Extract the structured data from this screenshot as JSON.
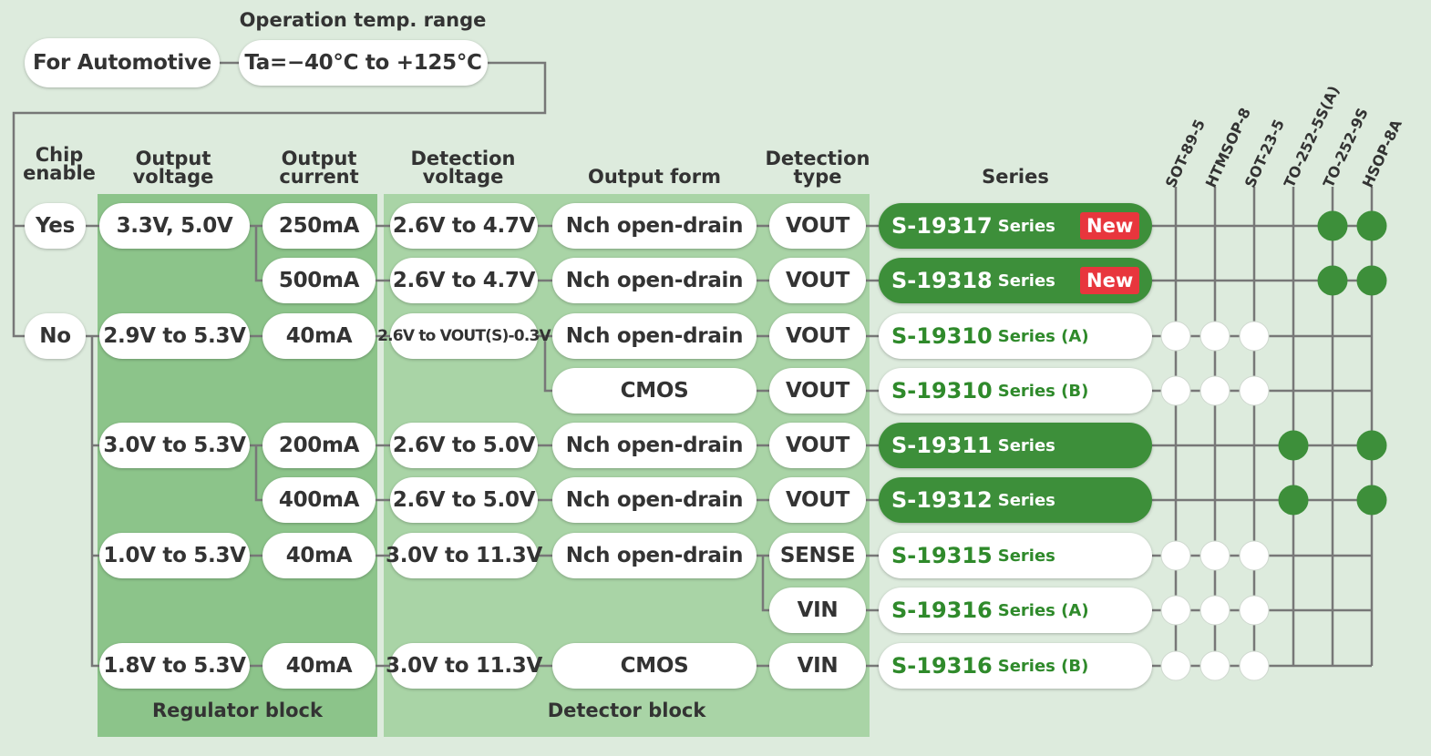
{
  "header": {
    "automotive_label": "For Automotive",
    "temp_caption": "Operation temp. range",
    "temp_value": "Ta=−40°C to +125°C"
  },
  "columns": {
    "chip_enable": "Chip enable",
    "output_voltage": "Output voltage",
    "output_current": "Output current",
    "detection_voltage": "Detection voltage",
    "output_form": "Output form",
    "detection_type": "Detection type",
    "series": "Series"
  },
  "blocks": {
    "regulator": "Regulator block",
    "detector": "Detector block"
  },
  "chip_enable": [
    "Yes",
    "No"
  ],
  "output_voltage": [
    "3.3V, 5.0V",
    "2.9V to 5.3V",
    "3.0V to 5.3V",
    "1.0V to 5.3V",
    "1.8V to 5.3V"
  ],
  "output_current": [
    "250mA",
    "500mA",
    "40mA",
    "200mA",
    "400mA",
    "40mA",
    "40mA"
  ],
  "detection_voltage": [
    "2.6V to 4.7V",
    "2.6V to 4.7V",
    "2.6V to VOUT(S)-0.3V",
    "2.6V to 5.0V",
    "2.6V to 5.0V",
    "3.0V to 11.3V",
    "3.0V to 11.3V"
  ],
  "output_form": [
    "Nch open-drain",
    "Nch open-drain",
    "Nch open-drain",
    "CMOS",
    "Nch open-drain",
    "Nch open-drain",
    "Nch open-drain",
    "CMOS"
  ],
  "detection_type": [
    "VOUT",
    "VOUT",
    "VOUT",
    "VOUT",
    "VOUT",
    "VOUT",
    "SENSE",
    "VIN",
    "VIN"
  ],
  "new_badge": "New",
  "packages": [
    "SOT-89-5",
    "HTMSOP-8",
    "SOT-23-5",
    "TO-252-5S(A)",
    "TO-252-9S",
    "HSOP-8A"
  ],
  "series": [
    {
      "name": "S-19317",
      "suffix": "Series",
      "style": "dark",
      "new": true,
      "packages": [
        false,
        false,
        false,
        false,
        true,
        true
      ]
    },
    {
      "name": "S-19318",
      "suffix": "Series",
      "style": "dark",
      "new": true,
      "packages": [
        false,
        false,
        false,
        false,
        true,
        true
      ]
    },
    {
      "name": "S-19310",
      "suffix": "Series (A)",
      "style": "light",
      "new": false,
      "packages": [
        true,
        true,
        true,
        false,
        false,
        false
      ]
    },
    {
      "name": "S-19310",
      "suffix": "Series (B)",
      "style": "light",
      "new": false,
      "packages": [
        true,
        true,
        true,
        false,
        false,
        false
      ]
    },
    {
      "name": "S-19311",
      "suffix": "Series",
      "style": "dark",
      "new": false,
      "packages": [
        false,
        false,
        false,
        true,
        false,
        true
      ]
    },
    {
      "name": "S-19312",
      "suffix": "Series",
      "style": "dark",
      "new": false,
      "packages": [
        false,
        false,
        false,
        true,
        false,
        true
      ]
    },
    {
      "name": "S-19315",
      "suffix": "Series",
      "style": "light",
      "new": false,
      "packages": [
        true,
        true,
        true,
        false,
        false,
        false
      ]
    },
    {
      "name": "S-19316",
      "suffix": "Series (A)",
      "style": "light",
      "new": false,
      "packages": [
        true,
        true,
        true,
        false,
        false,
        false
      ]
    },
    {
      "name": "S-19316",
      "suffix": "Series (B)",
      "style": "light",
      "new": false,
      "packages": [
        true,
        true,
        true,
        false,
        false,
        false
      ]
    }
  ],
  "colors": {
    "background": "#ddebdd",
    "regulator_block": "#8cc48a",
    "detector_block": "#a9d4a6",
    "series_dark": "#3d8f3a",
    "series_text": "#2f8a2b",
    "new_badge": "#e8363d",
    "connector": "#777777"
  }
}
